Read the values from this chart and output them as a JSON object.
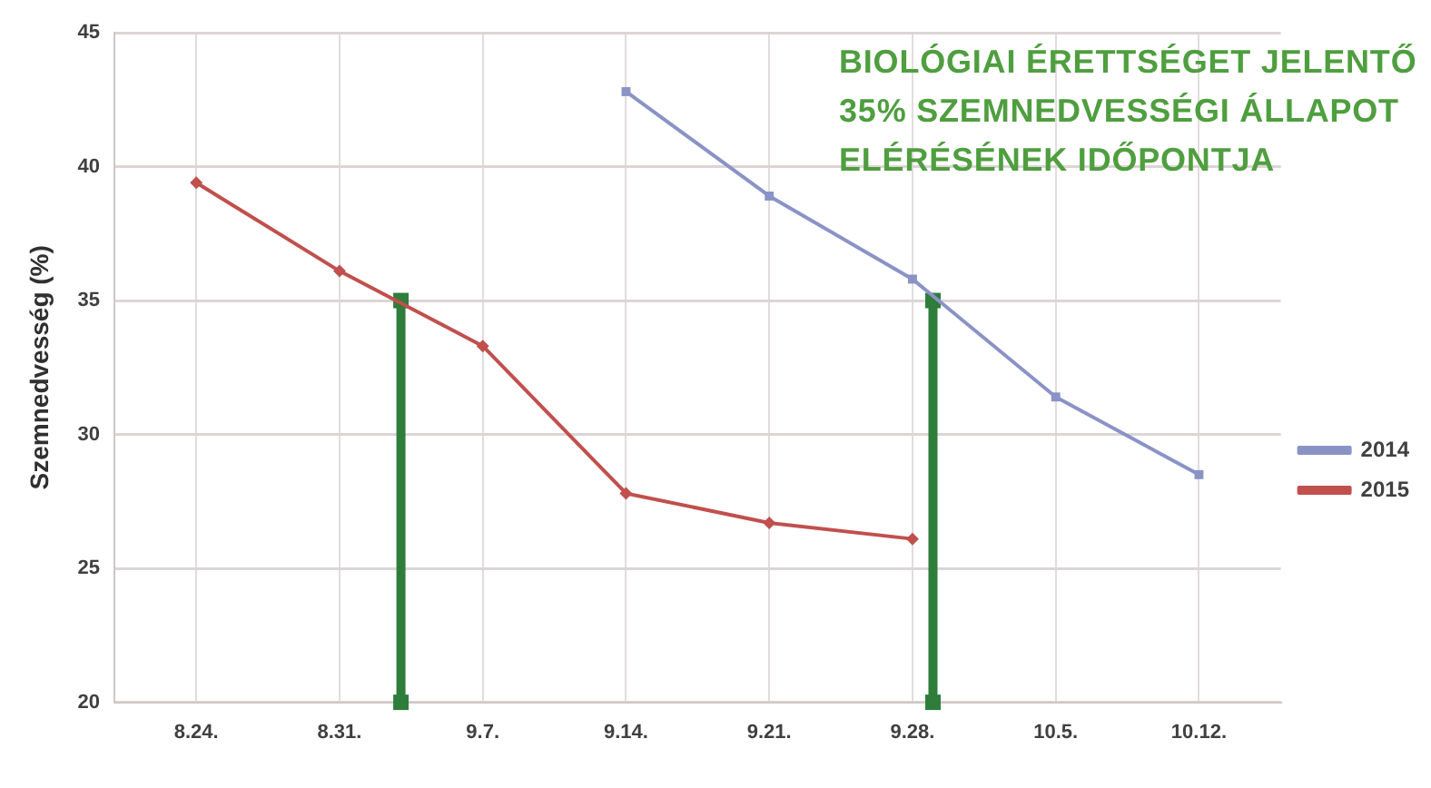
{
  "chart_data": {
    "type": "line",
    "ylabel": "Szemnedvesség (%)",
    "annotations": [
      "BIOLÓGIAI ÉRETTSÉGET JELENTŐ\n35% SZEMNEDVESSÉGI ÁLLAPOT\nELÉRÉSÉNEK IDŐPONTJA"
    ],
    "xlim": [
      "--08-20",
      "--10-16"
    ],
    "xticks": [
      {
        "value": "--08-24",
        "label": "8.24."
      },
      {
        "value": "--08-31",
        "label": "8.31."
      },
      {
        "value": "--09-07",
        "label": "9.7."
      },
      {
        "value": "--09-14",
        "label": "9.14."
      },
      {
        "value": "--09-21",
        "label": "9.21."
      },
      {
        "value": "--09-28",
        "label": "9.28."
      },
      {
        "value": "--10-05",
        "label": "10.5."
      },
      {
        "value": "--10-12",
        "label": "10.12."
      }
    ],
    "ylim": [
      20,
      45
    ],
    "yticks": [
      20,
      25,
      30,
      35,
      40,
      45
    ],
    "grid": true,
    "legend": "right",
    "series": [
      {
        "name": "2014",
        "color": "#8a93c6",
        "marker": "square",
        "x": [
          "--09-14",
          "--09-21",
          "--09-28",
          "--10-05",
          "--10-12"
        ],
        "values": [
          42.8,
          38.9,
          35.8,
          31.4,
          28.5
        ]
      },
      {
        "name": "2015",
        "color": "#c0504d",
        "marker": "diamond",
        "x": [
          "--08-24",
          "--08-31",
          "--09-07",
          "--09-14",
          "--09-21",
          "--09-28"
        ],
        "values": [
          39.4,
          36.1,
          33.3,
          27.8,
          26.7,
          26.1
        ]
      },
      {
        "color": "#2e7d3a",
        "marker": "square",
        "x": [
          "--09-03",
          "--09-03"
        ],
        "values": [
          35,
          20
        ]
      },
      {
        "color": "#2e7d3a",
        "marker": "square",
        "x": [
          "--09-29",
          "--09-29"
        ],
        "values": [
          35,
          20
        ]
      }
    ]
  }
}
